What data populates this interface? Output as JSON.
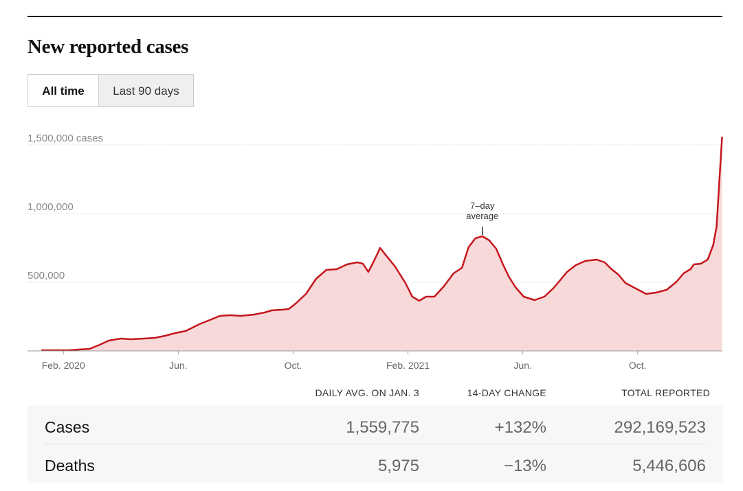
{
  "chart_data": {
    "type": "line",
    "title": "New reported cases",
    "buttons": [
      "All time",
      "Last 90 days"
    ],
    "annotation": [
      "7–day",
      "average"
    ],
    "color": "#c4161c",
    "fill_color": "#f8d9d9",
    "grid": true,
    "xlim": [
      -0.25,
      23.95
    ],
    "xticks": [
      {
        "value": 1,
        "label": "Feb. 2020"
      },
      {
        "value": 5,
        "label": "Jun."
      },
      {
        "value": 9,
        "label": "Oct."
      },
      {
        "value": 13,
        "label": "Feb. 2021"
      },
      {
        "value": 17,
        "label": "Jun."
      },
      {
        "value": 21,
        "label": "Oct."
      }
    ],
    "ylim": [
      0,
      1575000
    ],
    "yticks": [
      {
        "value": 500000,
        "label": "500,000"
      },
      {
        "value": 1000000,
        "label": "1,000,000"
      },
      {
        "value": 1500000,
        "label": "1,500,000 cases"
      }
    ],
    "x": [
      0.23,
      1.19,
      1.91,
      2.27,
      2.58,
      2.99,
      3.35,
      3.82,
      4.18,
      4.54,
      4.9,
      5.26,
      5.74,
      6.1,
      6.45,
      6.81,
      7.17,
      7.65,
      8.01,
      8.25,
      8.61,
      8.85,
      9.09,
      9.45,
      9.8,
      10.16,
      10.52,
      10.88,
      11.24,
      11.43,
      11.62,
      11.84,
      12.03,
      12.2,
      12.55,
      12.91,
      13.15,
      13.39,
      13.63,
      13.92,
      14.23,
      14.59,
      14.88,
      15.11,
      15.35,
      15.59,
      15.83,
      16.07,
      16.31,
      16.5,
      16.74,
      17.03,
      17.41,
      17.75,
      18.06,
      18.3,
      18.54,
      18.85,
      19.18,
      19.57,
      19.85,
      20.09,
      20.33,
      20.57,
      20.93,
      21.29,
      21.65,
      22.01,
      22.36,
      22.6,
      22.84,
      22.96,
      23.2,
      23.44,
      23.63,
      23.75,
      23.85,
      23.94
    ],
    "values": [
      5000,
      5000,
      15000,
      45000,
      75000,
      90000,
      85000,
      90000,
      95000,
      110000,
      130000,
      145000,
      195000,
      225000,
      255000,
      260000,
      255000,
      265000,
      280000,
      295000,
      300000,
      305000,
      345000,
      415000,
      525000,
      590000,
      595000,
      630000,
      645000,
      635000,
      575000,
      665000,
      750000,
      705000,
      615000,
      495000,
      395000,
      365000,
      395000,
      395000,
      465000,
      565000,
      605000,
      755000,
      820000,
      835000,
      805000,
      745000,
      630000,
      545000,
      465000,
      395000,
      370000,
      395000,
      455000,
      515000,
      575000,
      625000,
      655000,
      665000,
      645000,
      595000,
      555000,
      495000,
      455000,
      415000,
      425000,
      445000,
      505000,
      565000,
      595000,
      630000,
      635000,
      665000,
      770000,
      905000,
      1255000,
      1559775
    ]
  },
  "table": {
    "headers": [
      "DAILY AVG. ON JAN. 3",
      "14-DAY CHANGE",
      "TOTAL REPORTED"
    ],
    "rows": [
      [
        "Cases",
        "1,559,775",
        "+132%",
        "292,169,523"
      ],
      [
        "Deaths",
        "5,975",
        "−13%",
        "5,446,606"
      ]
    ]
  }
}
